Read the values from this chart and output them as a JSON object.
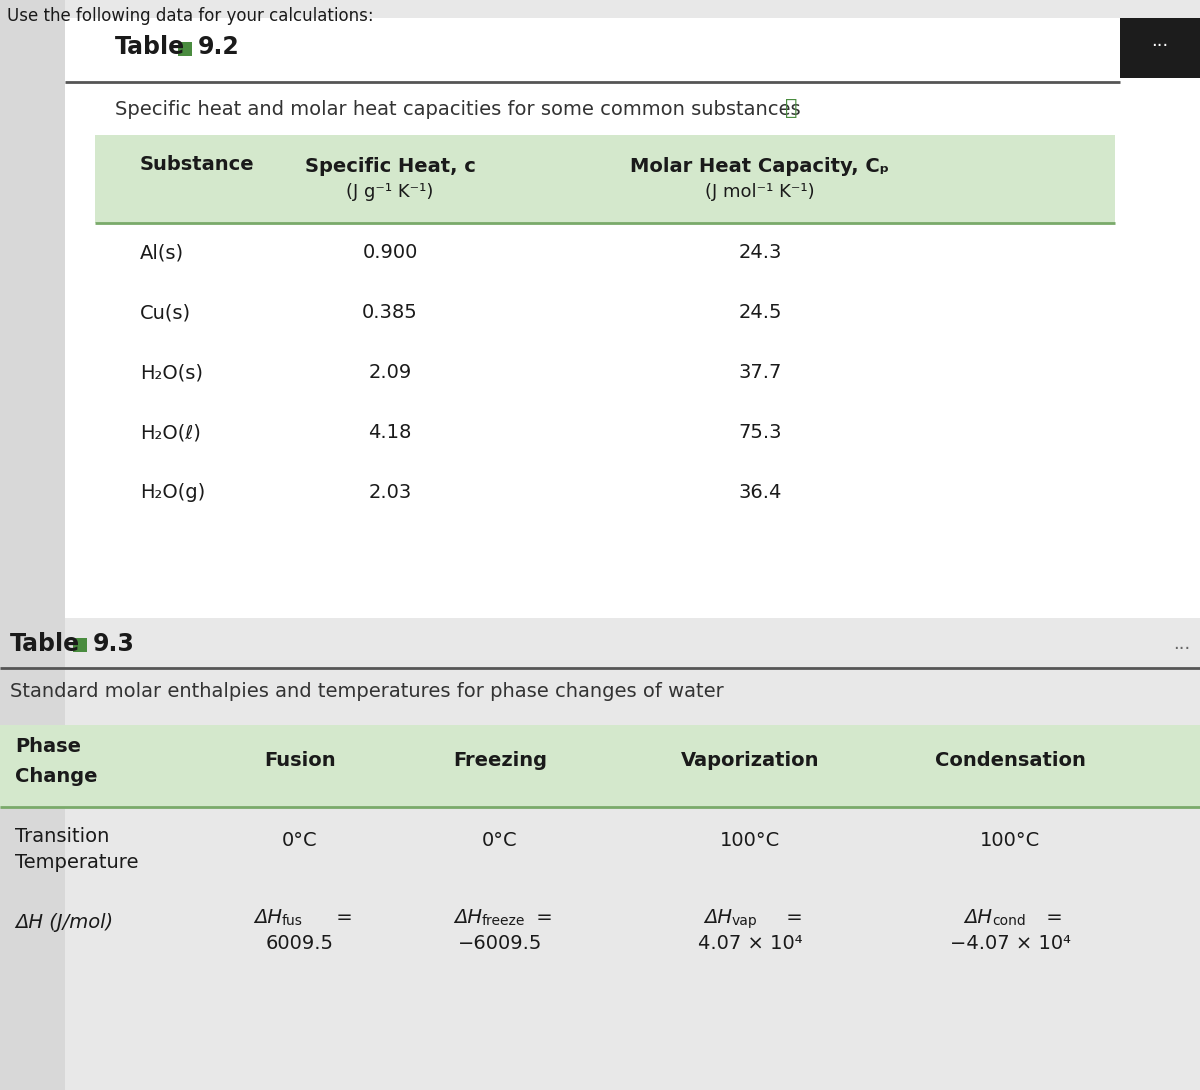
{
  "page_bg": "#e8e8e8",
  "card_bg": "#f5f5f5",
  "white_bg": "#ffffff",
  "header_bg": "#d4e8cc",
  "green_sq": "#4a8c3f",
  "black_btn": "#1c1c1c",
  "line_dark": "#555555",
  "line_green": "#7aaa6a",
  "text_dark": "#1a1a1a",
  "text_mid": "#333333",
  "text_light": "#555555",
  "top_text": "Use the following data for your calculations:",
  "t1_title_pre": "Table",
  "t1_title_num": "9.2",
  "t1_subtitle": "Specific heat and molar heat capacities for some common substances",
  "t1_h1": "Substance",
  "t1_h2a": "Specific Heat, c",
  "t1_h2b": "(J g⁻¹ K⁻¹)",
  "t1_h3a": "Molar Heat Capacity, Cₚ",
  "t1_h3b": "(J mol⁻¹ K⁻¹)",
  "t1_col1": [
    "Al(s)",
    "Cu(s)",
    "H₂O(s)",
    "H₂O(ℓ)",
    "H₂O(g)"
  ],
  "t1_col2": [
    "0.900",
    "0.385",
    "2.09",
    "4.18",
    "2.03"
  ],
  "t1_col3": [
    "24.3",
    "24.5",
    "37.7",
    "75.3",
    "36.4"
  ],
  "t2_title_pre": "Table",
  "t2_title_num": "9.3",
  "t2_subtitle": "Standard molar enthalpies and temperatures for phase changes of water",
  "t2_h0": "Phase\nChange",
  "t2_headers": [
    "Fusion",
    "Freezing",
    "Vaporization",
    "Condensation"
  ],
  "t2_r1_label": "Transition\nTemperature",
  "t2_r1_data": [
    "0°C",
    "0°C",
    "100°C",
    "100°C"
  ],
  "t2_r2_label": "ΔH (J/mol)",
  "t2_r2_main": [
    "ΔH",
    "ΔH",
    "ΔH",
    "ΔH"
  ],
  "t2_r2_sub": [
    "fus",
    "freeze",
    "vap",
    "cond"
  ],
  "t2_r2_val": [
    "6009.5",
    "−6009.5",
    "4.07 × 10⁴",
    "−4.07 × 10⁴"
  ]
}
